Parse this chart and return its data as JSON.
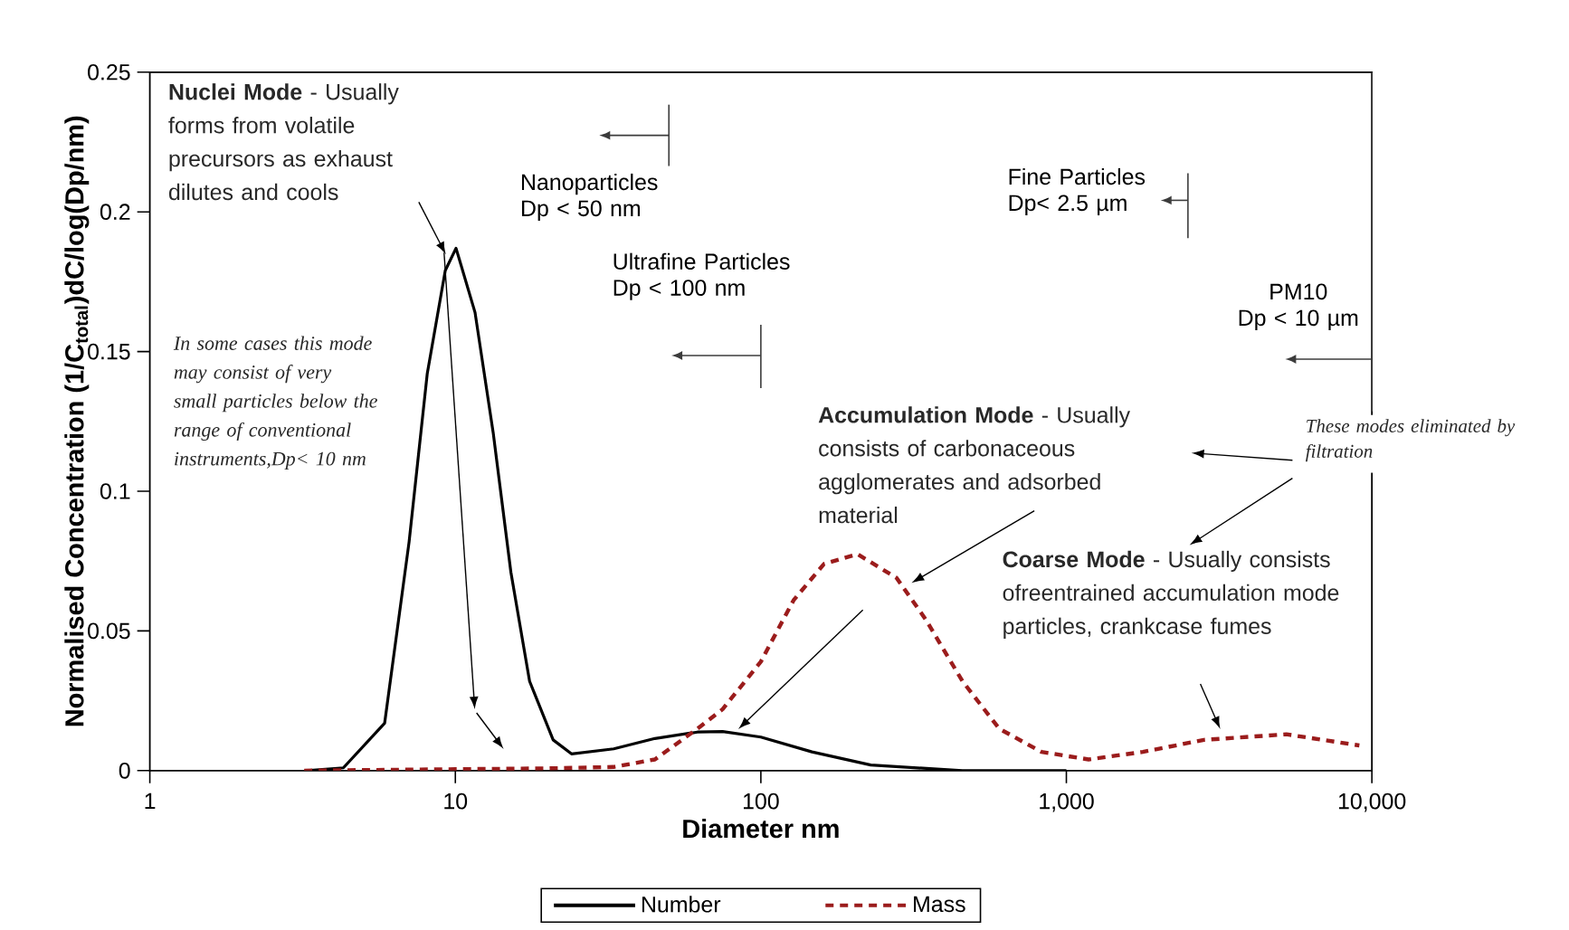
{
  "chart_data": {
    "type": "line",
    "xlabel": "Diameter nm",
    "ylabel": "Normalised Concentration (1/C$_{total}$)dC/log(Dp/nm)",
    "log": "x",
    "xlim": [
      1,
      10000
    ],
    "xticks": [
      {
        "value": 1,
        "label": "1"
      },
      {
        "value": 10,
        "label": "10"
      },
      {
        "value": 100,
        "label": "100"
      },
      {
        "value": 1000,
        "label": "1,000"
      },
      {
        "value": 10000,
        "label": "10,000"
      }
    ],
    "ylim": [
      0,
      0.25
    ],
    "yticks": [
      0,
      0.05,
      0.1,
      0.15,
      0.2,
      0.25
    ],
    "legend": "bottom",
    "marker": "none",
    "series": [
      {
        "name": "Number",
        "color": "#000000",
        "line_style": "solid",
        "x": [
          3.27,
          4.3,
          5.87,
          7.06,
          8.09,
          9.27,
          10.05,
          11.6,
          13.3,
          15.2,
          17.5,
          20.9,
          24,
          33,
          45,
          62,
          75,
          100,
          147,
          229,
          457,
          1000
        ],
        "values": [
          0,
          0.001,
          0.017,
          0.082,
          0.142,
          0.179,
          0.187,
          0.164,
          0.121,
          0.071,
          0.032,
          0.011,
          0.006,
          0.0078,
          0.0115,
          0.0138,
          0.014,
          0.012,
          0.0067,
          0.002,
          0,
          0
        ]
      },
      {
        "name": "Mass",
        "color": "#9b1c1c",
        "line_style": "dashed",
        "x": [
          3.2,
          10,
          20,
          33,
          45,
          62,
          75,
          100,
          128,
          161,
          207,
          278,
          347,
          457,
          603,
          829,
          1183,
          1780,
          2820,
          5250,
          9100
        ],
        "values": [
          0,
          0.0005,
          0.0008,
          0.0013,
          0.004,
          0.015,
          0.022,
          0.039,
          0.061,
          0.074,
          0.0775,
          0.069,
          0.054,
          0.032,
          0.015,
          0.0067,
          0.004,
          0.0067,
          0.011,
          0.013,
          0.009
        ]
      }
    ],
    "ref_lines": [
      {
        "axis": "x",
        "value": 50,
        "label": "Nanoparticles Dp < 50 nm"
      },
      {
        "axis": "x",
        "value": 100,
        "label": "Ultrafine Particles Dp < 100 nm"
      },
      {
        "axis": "x",
        "value": 2500,
        "label": "Fine Particles Dp< 2.5 µm"
      },
      {
        "axis": "x",
        "value": 10000,
        "label": "PM10 Dp < 10 µm"
      }
    ],
    "annotations": [
      "**Nuclei Mode** - Usually forms from volatile precursors as exhaust dilutes and cools",
      "In some cases this mode may consist of very small particles below the range of conventional instruments,Dp< 10 nm",
      "**Accumulation Mode** - Usually consists of carbonaceous agglomerates and adsorbed material",
      "**Coarse Mode** - Usually consists ofreentrained accumulation mode particles, crankcase fumes",
      "These modes eliminated by filtration"
    ]
  }
}
